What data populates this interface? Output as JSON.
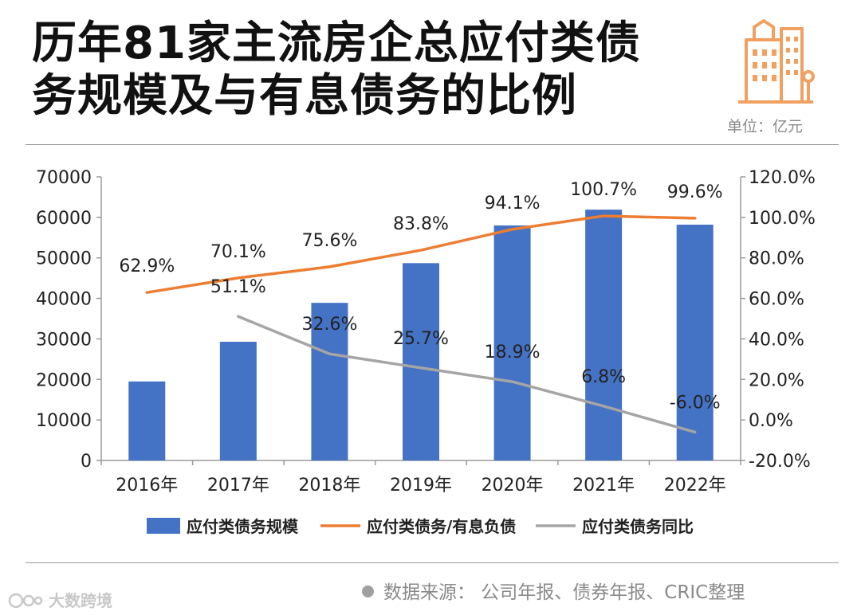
{
  "header": {
    "title_line1": "历年81家主流房企总应付类债",
    "title_line2": "务规模及与有息债务的比例",
    "unit": "单位：亿元"
  },
  "footer": {
    "source": "数据来源：  公司年报、债券年报、CRIC整理",
    "brand": "大数跨境"
  },
  "colors": {
    "bar": "#4472c4",
    "ratio_line": "#ed7d31",
    "yoy_line": "#a5a5a5",
    "logo": "#f0a060"
  },
  "chart_data": {
    "type": "bar",
    "title": "历年81家主流房企总应付类债务规模及与有息债务的比例",
    "categories": [
      "2016年",
      "2017年",
      "2018年",
      "2019年",
      "2020年",
      "2021年",
      "2022年"
    ],
    "series": [
      {
        "name": "应付类债务规模",
        "type": "bar",
        "axis": "left",
        "values": [
          19500,
          29300,
          38900,
          48700,
          58000,
          61900,
          58200
        ]
      },
      {
        "name": "应付类债务/有息负债",
        "type": "line",
        "axis": "right",
        "values": [
          62.9,
          70.1,
          75.6,
          83.8,
          94.1,
          100.7,
          99.6
        ],
        "labels": [
          "62.9%",
          "70.1%",
          "75.6%",
          "83.8%",
          "94.1%",
          "100.7%",
          "99.6%"
        ]
      },
      {
        "name": "应付类债务同比",
        "type": "line",
        "axis": "right",
        "values": [
          null,
          51.1,
          32.6,
          25.7,
          18.9,
          6.8,
          -6.0
        ],
        "labels": [
          "",
          "51.1%",
          "32.6%",
          "25.7%",
          "18.9%",
          "6.8%",
          "-6.0%"
        ]
      }
    ],
    "y_left": {
      "min": 0,
      "max": 70000,
      "ticks": [
        "0",
        "10000",
        "20000",
        "30000",
        "40000",
        "50000",
        "60000",
        "70000"
      ]
    },
    "y_right": {
      "min": -20,
      "max": 120,
      "ticks": [
        "-20.0%",
        "0.0%",
        "20.0%",
        "40.0%",
        "60.0%",
        "80.0%",
        "100.0%",
        "120.0%"
      ]
    },
    "legend_position": "bottom",
    "grid": false
  }
}
